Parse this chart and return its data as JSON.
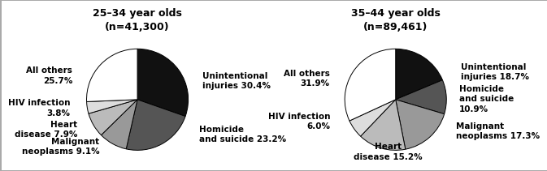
{
  "chart1": {
    "title": "25–34 year olds\n(n=41,300)",
    "slices": [
      30.4,
      23.2,
      9.1,
      7.9,
      3.8,
      25.7
    ],
    "colors": [
      "#111111",
      "#555555",
      "#999999",
      "#bbbbbb",
      "#dddddd",
      "#ffffff"
    ],
    "startangle": 90
  },
  "chart2": {
    "title": "35–44 year olds\n(n=89,461)",
    "slices": [
      18.7,
      10.9,
      17.3,
      15.2,
      6.0,
      31.9
    ],
    "colors": [
      "#111111",
      "#555555",
      "#999999",
      "#bbbbbb",
      "#dddddd",
      "#ffffff"
    ],
    "startangle": 90
  },
  "label_coords1": [
    [
      1.28,
      0.38,
      "Unintentional\ninjuries 30.4%",
      "left"
    ],
    [
      1.22,
      -0.68,
      "Homicide\nand suicide 23.2%",
      "left"
    ],
    [
      -0.75,
      -0.92,
      "Malignant\nneoplasms 9.1%",
      "right"
    ],
    [
      -1.18,
      -0.58,
      "Heart\ndisease 7.9%",
      "right"
    ],
    [
      -1.32,
      -0.16,
      "HIV infection\n3.8%",
      "right"
    ],
    [
      -1.28,
      0.48,
      "All others\n25.7%",
      "right"
    ]
  ],
  "label_coords2": [
    [
      1.28,
      0.55,
      "Unintentional\ninjuries 18.7%",
      "left"
    ],
    [
      1.25,
      0.02,
      "Homicide\nand suicide\n10.9%",
      "left"
    ],
    [
      1.18,
      -0.62,
      "Malignant\nneoplasms 17.3%",
      "left"
    ],
    [
      -0.15,
      -1.02,
      "Heart\ndisease 15.2%",
      "center"
    ],
    [
      -1.28,
      -0.42,
      "HIV infection\n6.0%",
      "right"
    ],
    [
      -1.3,
      0.42,
      "All others\n31.9%",
      "right"
    ]
  ],
  "label_fontsize": 7.5,
  "title_fontsize": 9,
  "bg_color": "#ffffff"
}
